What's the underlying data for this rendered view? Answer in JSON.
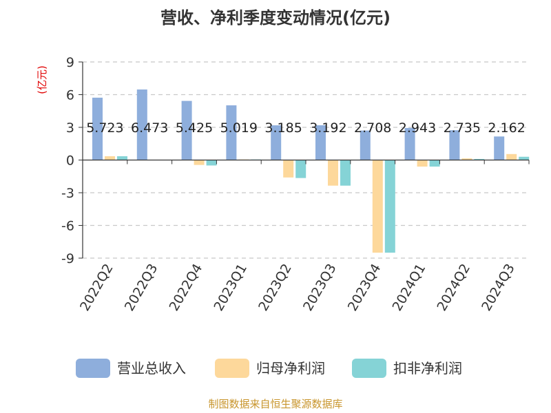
{
  "chart_data": {
    "type": "bar",
    "title": "营收、净利季度变动情况(亿元)",
    "ylabel": "(亿元)",
    "ylim": [
      -9,
      9
    ],
    "yticks": [
      9,
      6,
      3,
      0,
      -3,
      -6,
      -9
    ],
    "grid": true,
    "legend_position": "bottom",
    "categories": [
      "2022Q2",
      "2022Q3",
      "2022Q4",
      "2023Q1",
      "2023Q2",
      "2023Q3",
      "2023Q4",
      "2024Q1",
      "2024Q2",
      "2024Q3"
    ],
    "series": [
      {
        "name": "营业总收入",
        "color": "#8eaedc",
        "values": [
          5.723,
          6.473,
          5.425,
          5.019,
          3.185,
          3.192,
          2.708,
          2.943,
          2.735,
          2.162
        ],
        "data_labels": [
          "5.723",
          "6.473",
          "5.425",
          "5.019",
          "3.185",
          "3.192",
          "2.708",
          "2.943",
          "2.735",
          "2.162"
        ]
      },
      {
        "name": "归母净利润",
        "color": "#fdd89b",
        "values": [
          0.35,
          0.0,
          -0.45,
          0.05,
          -1.6,
          -2.35,
          -8.5,
          -0.6,
          0.15,
          0.55
        ]
      },
      {
        "name": "扣非净利润",
        "color": "#85d3d6",
        "values": [
          0.35,
          0.0,
          -0.5,
          0.05,
          -1.65,
          -2.35,
          -8.5,
          -0.6,
          0.1,
          0.3
        ]
      }
    ],
    "source": "制图数据来自恒生聚源数据库"
  }
}
